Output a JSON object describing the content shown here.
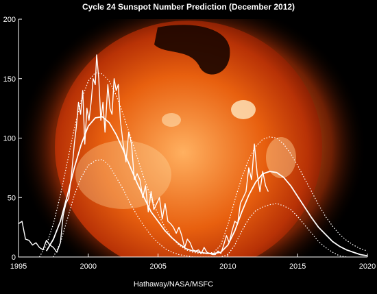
{
  "chart_data": {
    "type": "line",
    "title": "Cycle 24 Sunspot Number Prediction (December 2012)",
    "credit": "Hathaway/NASA/MSFC",
    "xlabel": "",
    "ylabel": "",
    "xlim": [
      1995,
      2020
    ],
    "ylim": [
      0,
      200
    ],
    "x_ticks": [
      1995,
      2000,
      2005,
      2010,
      2015,
      2020
    ],
    "y_ticks": [
      0,
      50,
      100,
      150,
      200
    ],
    "grid": false,
    "legend": "none",
    "colors": {
      "background": "#000000",
      "plot_lines": "#ffffff",
      "sun_core": "#ff7a1a",
      "sun_edge": "#b02800"
    },
    "series": [
      {
        "style": "jagged",
        "x": [
          1995.0,
          1995.25,
          1995.5,
          1995.75,
          1996.0,
          1996.25,
          1996.5,
          1996.75,
          1997.0,
          1997.25,
          1997.5,
          1997.75,
          1998.0,
          1998.2,
          1998.4,
          1998.6,
          1998.8,
          1999.0,
          1999.15,
          1999.3,
          1999.45,
          1999.6,
          1999.75,
          1999.9,
          2000.05,
          2000.2,
          2000.35,
          2000.5,
          2000.6,
          2000.75,
          2000.9,
          2001.05,
          2001.2,
          2001.4,
          2001.55,
          2001.7,
          2001.85,
          2002.0,
          2002.15,
          2002.3,
          2002.5,
          2002.7,
          2002.9,
          2003.1,
          2003.3,
          2003.5,
          2003.7,
          2003.9,
          2004.1,
          2004.3,
          2004.5,
          2004.7,
          2004.9,
          2005.1,
          2005.3,
          2005.5,
          2005.7,
          2005.9,
          2006.1,
          2006.3,
          2006.5,
          2006.7,
          2006.9,
          2007.1,
          2007.3,
          2007.5,
          2007.7,
          2007.9,
          2008.1,
          2008.3,
          2008.5,
          2008.7,
          2008.9,
          2009.1,
          2009.3,
          2009.5,
          2009.7,
          2009.9,
          2010.1,
          2010.3,
          2010.5,
          2010.7,
          2010.9,
          2011.1,
          2011.3,
          2011.5,
          2011.7,
          2011.9,
          2012.1,
          2012.3,
          2012.5,
          2012.7,
          2012.9
        ],
        "y": [
          28,
          30,
          15,
          14,
          10,
          12,
          8,
          6,
          14,
          10,
          8,
          4,
          12,
          35,
          45,
          50,
          70,
          95,
          110,
          130,
          120,
          140,
          95,
          125,
          115,
          130,
          150,
          145,
          170,
          150,
          115,
          130,
          105,
          145,
          125,
          120,
          150,
          140,
          145,
          115,
          95,
          80,
          105,
          95,
          65,
          70,
          65,
          50,
          60,
          38,
          55,
          40,
          45,
          50,
          32,
          45,
          30,
          28,
          25,
          20,
          25,
          18,
          8,
          15,
          12,
          6,
          5,
          6,
          3,
          8,
          4,
          3,
          2,
          2,
          5,
          3,
          10,
          18,
          12,
          22,
          30,
          28,
          45,
          50,
          55,
          75,
          65,
          95,
          70,
          55,
          72,
          60,
          55
        ]
      },
      {
        "style": "solid",
        "x": [
          1997.0,
          1997.5,
          1998.0,
          1998.5,
          1999.0,
          1999.5,
          2000.0,
          2000.5,
          2001.0,
          2001.5,
          2002.0,
          2002.5,
          2003.0,
          2003.5,
          2004.0,
          2004.5,
          2005.0,
          2005.5,
          2006.0,
          2006.5,
          2007.0,
          2007.5,
          2008.0,
          2008.5,
          2009.0,
          2009.5,
          2010.0,
          2010.5,
          2011.0,
          2011.5,
          2012.0,
          2012.5,
          2013.0,
          2013.5,
          2014.0,
          2014.5,
          2015.0,
          2015.5,
          2016.0,
          2016.5,
          2017.0,
          2017.5,
          2018.0,
          2018.5,
          2019.0,
          2019.5,
          2020.0
        ],
        "y": [
          5,
          15,
          30,
          52,
          75,
          95,
          110,
          117,
          118,
          113,
          103,
          90,
          76,
          62,
          50,
          38,
          30,
          22,
          16,
          11,
          7,
          5,
          4,
          3,
          3,
          4,
          10,
          22,
          38,
          52,
          63,
          70,
          72,
          71,
          67,
          60,
          51,
          42,
          33,
          25,
          19,
          13,
          9,
          6,
          4,
          2,
          1
        ]
      },
      {
        "style": "dotted",
        "x": [
          1996.5,
          1997.0,
          1997.5,
          1998.0,
          1998.5,
          1999.0,
          1999.5,
          2000.0,
          2000.5,
          2001.0,
          2001.5,
          2002.0,
          2002.5,
          2003.0,
          2003.5,
          2004.0,
          2004.5,
          2005.0,
          2005.5,
          2006.0,
          2006.5,
          2007.0,
          2007.5,
          2008.0,
          2008.5,
          2009.0,
          2009.5,
          2010.0,
          2010.5,
          2011.0,
          2011.5,
          2012.0,
          2012.5,
          2013.0,
          2013.5,
          2014.0,
          2014.5,
          2015.0,
          2015.5,
          2016.0,
          2016.5,
          2017.0,
          2017.5,
          2018.0,
          2018.5,
          2019.0,
          2019.5,
          2020.0
        ],
        "y": [
          0,
          10,
          28,
          52,
          80,
          108,
          132,
          148,
          155,
          154,
          148,
          136,
          120,
          102,
          84,
          66,
          50,
          36,
          25,
          16,
          10,
          6,
          4,
          3,
          3,
          4,
          10,
          27,
          48,
          67,
          82,
          93,
          99,
          101,
          100,
          95,
          87,
          77,
          66,
          55,
          44,
          34,
          26,
          19,
          14,
          10,
          7,
          5
        ]
      },
      {
        "style": "dotted",
        "x": [
          1997.5,
          1998.0,
          1998.5,
          1999.0,
          1999.5,
          2000.0,
          2000.5,
          2001.0,
          2001.5,
          2002.0,
          2002.5,
          2003.0,
          2003.5,
          2004.0,
          2004.5,
          2005.0,
          2005.5,
          2006.0,
          2006.5,
          2007.0,
          2007.5,
          2008.0,
          2008.5,
          2009.0,
          2009.5,
          2010.0,
          2010.5,
          2011.0,
          2011.5,
          2012.0,
          2012.5,
          2013.0,
          2013.5,
          2014.0,
          2014.5,
          2015.0,
          2015.5,
          2016.0,
          2016.5,
          2017.0,
          2017.5,
          2018.0,
          2018.5
        ],
        "y": [
          0,
          12,
          32,
          52,
          67,
          77,
          81,
          82,
          77,
          67,
          57,
          45,
          35,
          26,
          18,
          12,
          7,
          4,
          2,
          1,
          0,
          0,
          0,
          0,
          0,
          2,
          10,
          22,
          32,
          39,
          42,
          44,
          45,
          43,
          40,
          34,
          27,
          20,
          13,
          8,
          4,
          1,
          0
        ]
      }
    ]
  }
}
